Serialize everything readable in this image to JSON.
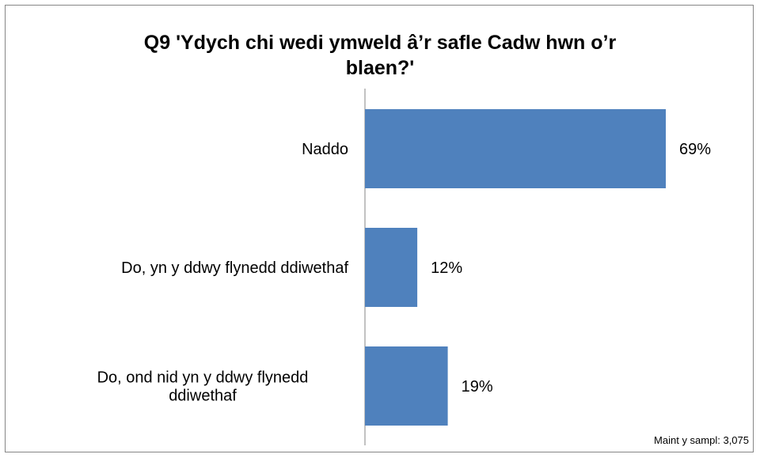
{
  "chart_data": {
    "type": "bar",
    "orientation": "horizontal",
    "title": "Q9 'Ydych chi wedi ymweld â’r safle Cadw hwn o’r blaen?'",
    "title_lines": [
      "Q9 'Ydych chi wedi ymweld â’r safle Cadw hwn o’r",
      "blaen?'"
    ],
    "categories": [
      [
        "Naddo"
      ],
      [
        "Do, yn y ddwy flynedd ddiwethaf"
      ],
      [
        "Do, ond nid yn y ddwy flynedd",
        "ddiwethaf"
      ]
    ],
    "values": [
      69,
      12,
      19
    ],
    "value_labels": [
      "69%",
      "12%",
      "19%"
    ],
    "unit": "%",
    "xlim": [
      0,
      100
    ],
    "bar_color": "#4f81bd",
    "grid": false,
    "legend": "none"
  },
  "footer": {
    "sample_note": "Maint y sampl: 3,075"
  }
}
